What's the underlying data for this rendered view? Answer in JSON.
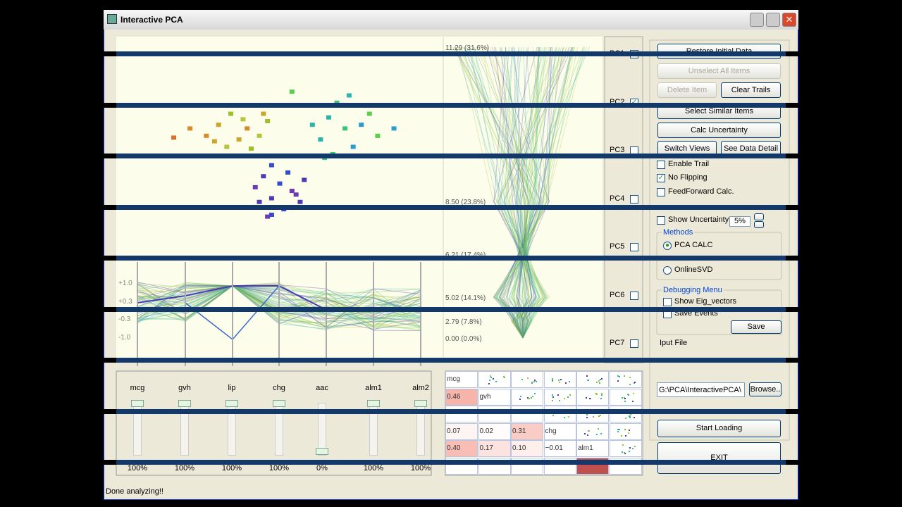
{
  "window": {
    "title": "Interactive PCA",
    "status": "Done analyzing!!"
  },
  "scatter": {
    "xlim": [
      -4,
      4
    ],
    "ylim": [
      -3,
      3
    ],
    "x": [
      -1.5,
      -1.2,
      -0.8,
      -0.5,
      -1.0,
      -1.8,
      -0.3,
      -2.6,
      -1.3,
      -0.7,
      -0.4,
      -2.2,
      -0.9,
      -1.6,
      1.2,
      1.6,
      2.0,
      2.4,
      1.0,
      1.4,
      1.8,
      2.2,
      0.8,
      1.3,
      2.8,
      0.3,
      1.7,
      1.1,
      -0.4,
      0,
      0.3,
      -0.2,
      0.2,
      -0.6,
      0.5,
      0.1,
      -0.3,
      0.6,
      -0.2,
      0.4,
      -0.5,
      -0.2
    ],
    "y": [
      0.6,
      0.9,
      0.5,
      0.3,
      0.2,
      0.3,
      0.7,
      0.25,
      0.0,
      -0.05,
      0.9,
      0.5,
      0.75,
      0.15,
      0.8,
      0.5,
      0.6,
      0.3,
      0.2,
      1.2,
      0.0,
      0.9,
      0.6,
      -0.2,
      0.5,
      1.5,
      1.4,
      -0.3,
      -0.8,
      -1.0,
      -1.2,
      -1.4,
      -0.7,
      -1.1,
      -1.5,
      -1.7,
      -1.9,
      -0.9,
      -0.5,
      -1.3,
      -1.5,
      -1.85
    ],
    "colors": [
      "#c8a82a",
      "#9cbf2a",
      "#d98a2a",
      "#b5c43a",
      "#c8a82a",
      "#d98a2a",
      "#9cbf2a",
      "#d9702a",
      "#b5c43a",
      "#9cbf2a",
      "#c8a82a",
      "#d98a2a",
      "#b5c43a",
      "#c8a82a",
      "#2ab5a8",
      "#3ac47a",
      "#2a9ccf",
      "#5ccf4a",
      "#2ab5a8",
      "#3ac47a",
      "#2a9ccf",
      "#5ccf4a",
      "#2ab5a8",
      "#3ac47a",
      "#2a9ccf",
      "#5ccf4a",
      "#2ab5a8",
      "#3ac47a",
      "#4a3ab5",
      "#3a4acf",
      "#6a3ab5",
      "#4a3ab5",
      "#3a4acf",
      "#6a3ab5",
      "#4a3ab5",
      "#3a4acf",
      "#6a3ab5",
      "#4a3ab5",
      "#3a4acf",
      "#6a3ab5",
      "#4a3ab5",
      "#3a4acf"
    ]
  },
  "parallel": {
    "labels": [
      "+1.0",
      "+0.3",
      "-0.3",
      "-1.0"
    ]
  },
  "eigen": {
    "labels": [
      "11.29 (31.6%)",
      "8.50 (23.8%)",
      "6.21 (17.4%)",
      "5.02 (14.1%)",
      "2.79 (7.8%)",
      "0.00 (0.0%)"
    ]
  },
  "pcs": [
    {
      "label": "PC1",
      "checked": false
    },
    {
      "label": "PC2",
      "checked": true
    },
    {
      "label": "PC3",
      "checked": false
    },
    {
      "label": "PC4",
      "checked": false
    },
    {
      "label": "PC5",
      "checked": false
    },
    {
      "label": "PC6",
      "checked": false
    },
    {
      "label": "PC7",
      "checked": false
    }
  ],
  "controls": {
    "buttons": [
      "Restore Initial Data",
      "Unselect All Items",
      "Delete Item",
      "Clear Trails",
      "Select Similar Items",
      "Calc Uncertainty",
      "Switch Views",
      "See Data Detail"
    ],
    "checkboxes": [
      {
        "label": "Enable Trail",
        "checked": false
      },
      {
        "label": "No Flipping",
        "checked": true
      },
      {
        "label": "FeedForward Calc.",
        "checked": false
      },
      {
        "label": "Show Uncertainty",
        "checked": false
      }
    ],
    "uncertainty": "5%",
    "methods": {
      "title": "Methods",
      "options": [
        {
          "label": "PCA CALC",
          "checked": true
        },
        {
          "label": "OnlineSVD",
          "checked": false
        }
      ]
    },
    "debug": {
      "title": "Debugging Menu",
      "checkboxes": [
        "Show Eig_vectors",
        "Save Events"
      ],
      "save": "Save"
    },
    "input_file": "Iput File",
    "path": "G:\\PCA\\InteractivePCA\\",
    "browse": "Browse..",
    "start": "Start Loading",
    "exit": "EXIT"
  },
  "sliders": {
    "names": [
      "mcg",
      "gvh",
      "lip",
      "chg",
      "aac",
      "alm1",
      "alm2"
    ],
    "labels": [
      "100%",
      "100%",
      "100%",
      "100%",
      "0%",
      "100%",
      "100%"
    ]
  },
  "matrix": {
    "rows": [
      [
        "mcg",
        null,
        null,
        null,
        null,
        null
      ],
      [
        "0.46",
        "gvh",
        null,
        null,
        null,
        null
      ],
      [
        null,
        null,
        null,
        null,
        null,
        null
      ],
      [
        "0.07",
        "0.02",
        "0.31",
        "chg",
        null,
        null
      ],
      [
        "0.40",
        "0.17",
        "0.10",
        "−0.01",
        "alm1",
        null
      ],
      [
        null,
        null,
        null,
        null,
        null,
        null
      ]
    ]
  }
}
